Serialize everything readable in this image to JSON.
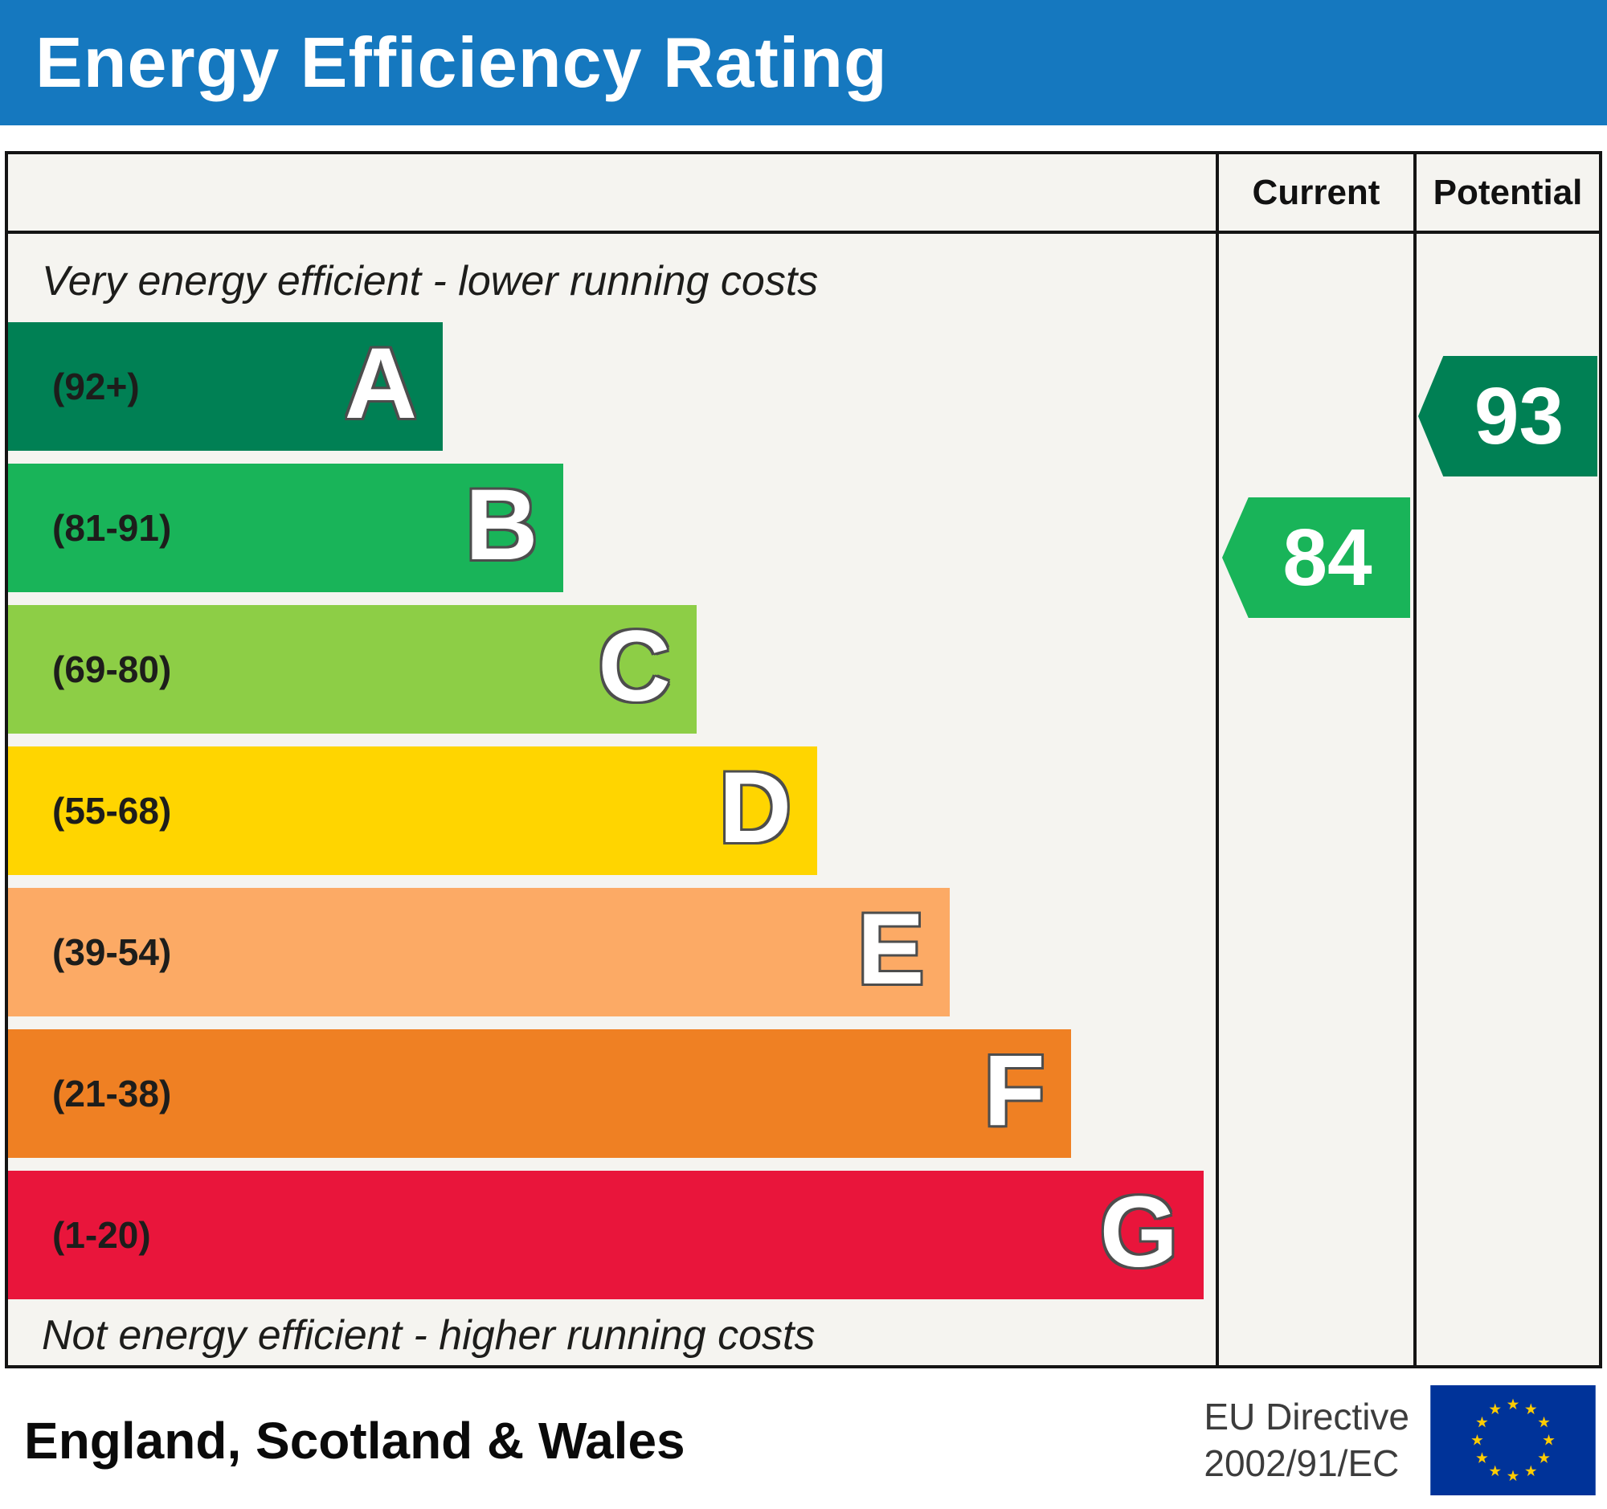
{
  "header": {
    "title": "Energy Efficiency Rating",
    "bg_color": "#1578bf"
  },
  "columns": {
    "current_label": "Current",
    "potential_label": "Potential"
  },
  "notes": {
    "top": "Very energy efficient - lower running costs",
    "bottom": "Not energy efficient - higher running costs"
  },
  "bands": [
    {
      "letter": "A",
      "range_label": "(92+)",
      "color": "#008054",
      "width_pct": 36
    },
    {
      "letter": "B",
      "range_label": "(81-91)",
      "color": "#19b459",
      "width_pct": 46
    },
    {
      "letter": "C",
      "range_label": "(69-80)",
      "color": "#8dce46",
      "width_pct": 57
    },
    {
      "letter": "D",
      "range_label": "(55-68)",
      "color": "#ffd500",
      "width_pct": 67
    },
    {
      "letter": "E",
      "range_label": "(39-54)",
      "color": "#fcaa65",
      "width_pct": 78
    },
    {
      "letter": "F",
      "range_label": "(21-38)",
      "color": "#ef8023",
      "width_pct": 88
    },
    {
      "letter": "G",
      "range_label": "(1-20)",
      "color": "#e9153b",
      "width_pct": 99
    }
  ],
  "ratings": {
    "current": {
      "value": "84",
      "band": "B",
      "color": "#19b459"
    },
    "potential": {
      "value": "93",
      "band": "A",
      "color": "#008054"
    }
  },
  "footer": {
    "region": "England, Scotland & Wales",
    "directive_line1": "EU Directive",
    "directive_line2": "2002/91/EC",
    "flag_bg": "#003399",
    "star_color": "#ffcc00"
  },
  "chart_data": {
    "type": "bar",
    "title": "Energy Efficiency Rating",
    "categories": [
      "A",
      "B",
      "C",
      "D",
      "E",
      "F",
      "G"
    ],
    "band_ranges": [
      "92+",
      "81-91",
      "69-80",
      "55-68",
      "39-54",
      "21-38",
      "1-20"
    ],
    "band_colors": [
      "#008054",
      "#19b459",
      "#8dce46",
      "#ffd500",
      "#fcaa65",
      "#ef8023",
      "#e9153b"
    ],
    "bar_widths_pct": [
      36,
      46,
      57,
      67,
      78,
      88,
      99
    ],
    "current": {
      "value": 84,
      "band": "B"
    },
    "potential": {
      "value": 93,
      "band": "A"
    },
    "xlabel": "",
    "ylabel": "",
    "annotation_top": "Very energy efficient - lower running costs",
    "annotation_bottom": "Not energy efficient - higher running costs",
    "region": "England, Scotland & Wales",
    "directive": "EU Directive 2002/91/EC",
    "legend_position": "none",
    "grid": false
  }
}
